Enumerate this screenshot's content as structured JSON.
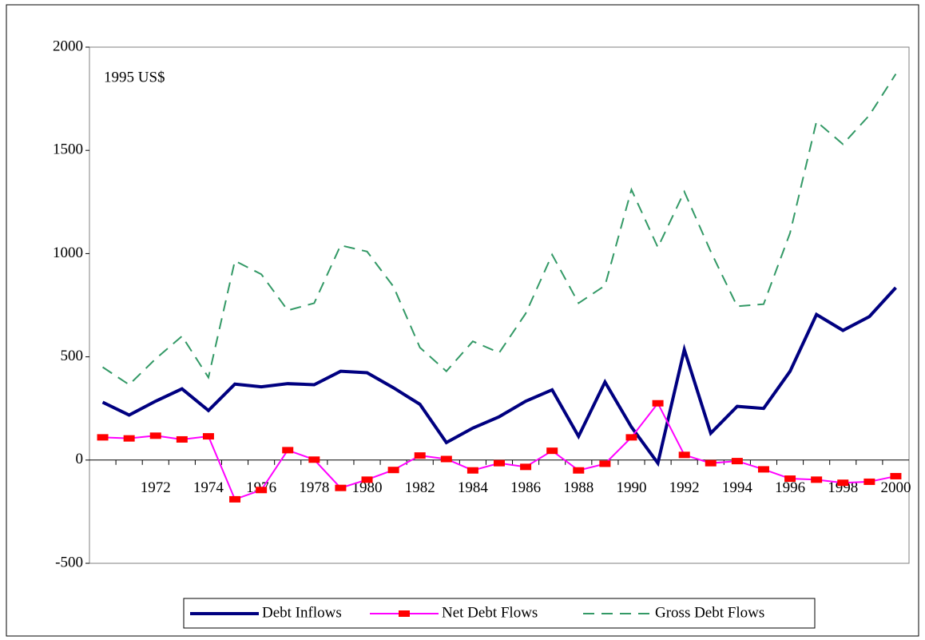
{
  "chart_data": {
    "type": "line",
    "annotation": "1995 US$",
    "categories": [
      null,
      null,
      "1972",
      null,
      "1974",
      null,
      "1976",
      null,
      "1978",
      null,
      "1980",
      null,
      "1982",
      null,
      "1984",
      null,
      "1986",
      null,
      "1988",
      null,
      "1990",
      null,
      "1992",
      null,
      "1994",
      null,
      "1996",
      null,
      "1998",
      null,
      "2000"
    ],
    "series": [
      {
        "name": "Debt Inflows",
        "color": "#000080",
        "line_style": "solid",
        "marker": "none",
        "values": [
          280,
          218,
          285,
          345,
          240,
          368,
          355,
          370,
          365,
          430,
          423,
          350,
          270,
          85,
          155,
          210,
          285,
          340,
          115,
          378,
          160,
          -15,
          535,
          130,
          260,
          250,
          430,
          705,
          628,
          695,
          835
        ]
      },
      {
        "name": "Net Debt Flows",
        "color": "#ff00ff",
        "marker_color": "#ff0000",
        "line_style": "solid",
        "marker": "square",
        "values": [
          110,
          105,
          118,
          100,
          115,
          -190,
          -145,
          48,
          2,
          -135,
          -95,
          -48,
          22,
          5,
          -50,
          -15,
          -33,
          45,
          -50,
          -18,
          110,
          275,
          25,
          -15,
          -5,
          -45,
          -90,
          -95,
          -110,
          -105,
          -78
        ]
      },
      {
        "name": "Gross Debt Flows",
        "color": "#339966",
        "line_style": "dashed",
        "marker": "none",
        "values": [
          450,
          365,
          490,
          600,
          400,
          965,
          900,
          725,
          760,
          1040,
          1010,
          840,
          545,
          430,
          575,
          520,
          710,
          995,
          760,
          845,
          1310,
          1030,
          1300,
          1010,
          745,
          755,
          1100,
          1640,
          1530,
          1670,
          1870
        ]
      }
    ],
    "ylim": [
      -500,
      2000
    ],
    "yticks": [
      -500,
      0,
      500,
      1000,
      1500,
      2000
    ],
    "grid": false,
    "legend": "bottom"
  }
}
